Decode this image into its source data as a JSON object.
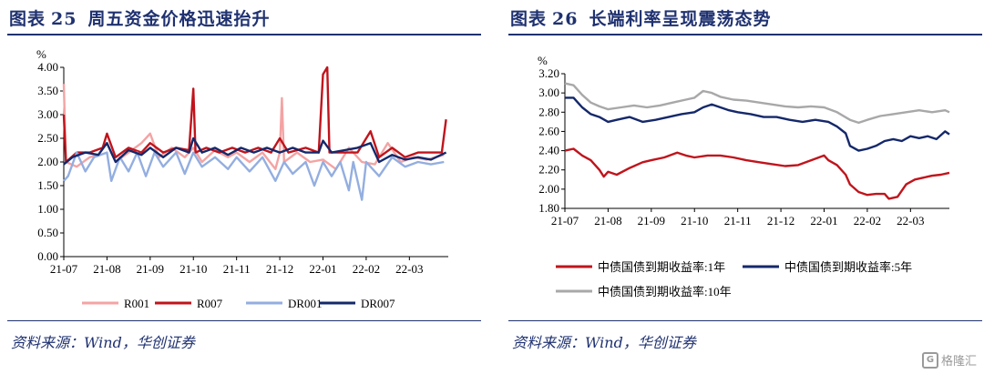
{
  "left": {
    "title_prefix": "图表",
    "title_num": "25",
    "title_text": "周五资金价格迅速抬升",
    "source": "资料来源：Wind，华创证券"
  },
  "right": {
    "title_prefix": "图表",
    "title_num": "26",
    "title_text": "长端利率呈现震荡态势",
    "source": "资料来源：Wind，华创证券"
  },
  "watermark": "格隆汇",
  "colors": {
    "R001": "#f4a3a3",
    "R007": "#c0141c",
    "DR001": "#93aee0",
    "DR007": "#14286a",
    "y1": "#c0141c",
    "y5": "#14286a",
    "y10": "#a8a8a8",
    "axis": "#000000"
  },
  "chart_data": [
    {
      "type": "line",
      "ylabel": "%",
      "ylim": [
        0,
        4.0
      ],
      "yticks": [
        "0.00",
        "0.50",
        "1.00",
        "1.50",
        "2.00",
        "2.50",
        "3.00",
        "3.50",
        "4.00"
      ],
      "xticks": [
        "21-07",
        "21-08",
        "21-09",
        "21-10",
        "21-11",
        "21-12",
        "22-01",
        "22-02",
        "22-03"
      ],
      "legend_position": "bottom",
      "series": [
        {
          "name": "R001",
          "color_key": "R001",
          "points": [
            [
              0,
              3.65
            ],
            [
              0.05,
              2.0
            ],
            [
              0.3,
              1.9
            ],
            [
              0.6,
              2.1
            ],
            [
              0.8,
              2.15
            ],
            [
              1.0,
              2.4
            ],
            [
              1.2,
              2.0
            ],
            [
              1.5,
              2.2
            ],
            [
              1.8,
              2.4
            ],
            [
              2.0,
              2.6
            ],
            [
              2.2,
              2.1
            ],
            [
              2.5,
              2.3
            ],
            [
              2.8,
              2.1
            ],
            [
              3.0,
              2.3
            ],
            [
              3.2,
              2.0
            ],
            [
              3.5,
              2.25
            ],
            [
              3.8,
              2.1
            ],
            [
              4.0,
              2.2
            ],
            [
              4.3,
              2.0
            ],
            [
              4.6,
              2.2
            ],
            [
              4.9,
              1.85
            ],
            [
              5.0,
              2.2
            ],
            [
              5.05,
              3.35
            ],
            [
              5.1,
              2.0
            ],
            [
              5.4,
              2.2
            ],
            [
              5.7,
              2.0
            ],
            [
              6.0,
              2.05
            ],
            [
              6.3,
              1.85
            ],
            [
              6.6,
              2.3
            ],
            [
              6.9,
              2.0
            ],
            [
              7.2,
              1.95
            ],
            [
              7.5,
              2.4
            ],
            [
              7.8,
              2.0
            ],
            [
              8.1,
              2.1
            ],
            [
              8.4,
              2.05
            ],
            [
              8.8,
              2.15
            ]
          ]
        },
        {
          "name": "R007",
          "color_key": "R007",
          "points": [
            [
              0,
              3.0
            ],
            [
              0.05,
              2.0
            ],
            [
              0.3,
              2.2
            ],
            [
              0.6,
              2.2
            ],
            [
              0.9,
              2.3
            ],
            [
              1.0,
              2.6
            ],
            [
              1.2,
              2.1
            ],
            [
              1.5,
              2.3
            ],
            [
              1.8,
              2.2
            ],
            [
              2.0,
              2.4
            ],
            [
              2.3,
              2.2
            ],
            [
              2.6,
              2.3
            ],
            [
              2.9,
              2.25
            ],
            [
              3.0,
              3.55
            ],
            [
              3.05,
              2.2
            ],
            [
              3.3,
              2.3
            ],
            [
              3.6,
              2.2
            ],
            [
              3.9,
              2.3
            ],
            [
              4.2,
              2.2
            ],
            [
              4.5,
              2.3
            ],
            [
              4.8,
              2.2
            ],
            [
              5.0,
              2.5
            ],
            [
              5.2,
              2.2
            ],
            [
              5.6,
              2.3
            ],
            [
              5.9,
              2.2
            ],
            [
              6.0,
              3.85
            ],
            [
              6.1,
              4.0
            ],
            [
              6.15,
              2.2
            ],
            [
              6.4,
              2.2
            ],
            [
              6.8,
              2.2
            ],
            [
              7.1,
              2.65
            ],
            [
              7.3,
              2.1
            ],
            [
              7.6,
              2.3
            ],
            [
              7.9,
              2.1
            ],
            [
              8.2,
              2.2
            ],
            [
              8.5,
              2.2
            ],
            [
              8.75,
              2.2
            ],
            [
              8.85,
              2.9
            ]
          ]
        },
        {
          "name": "DR001",
          "color_key": "DR001",
          "points": [
            [
              0,
              1.6
            ],
            [
              0.1,
              1.7
            ],
            [
              0.3,
              2.2
            ],
            [
              0.5,
              1.8
            ],
            [
              0.7,
              2.1
            ],
            [
              1.0,
              2.2
            ],
            [
              1.1,
              1.6
            ],
            [
              1.3,
              2.1
            ],
            [
              1.5,
              1.8
            ],
            [
              1.7,
              2.2
            ],
            [
              1.9,
              1.7
            ],
            [
              2.1,
              2.2
            ],
            [
              2.3,
              1.9
            ],
            [
              2.6,
              2.2
            ],
            [
              2.8,
              1.75
            ],
            [
              3.0,
              2.2
            ],
            [
              3.2,
              1.9
            ],
            [
              3.5,
              2.1
            ],
            [
              3.8,
              1.85
            ],
            [
              4.0,
              2.1
            ],
            [
              4.3,
              1.8
            ],
            [
              4.6,
              2.1
            ],
            [
              4.9,
              1.6
            ],
            [
              5.1,
              2.0
            ],
            [
              5.3,
              1.75
            ],
            [
              5.6,
              2.0
            ],
            [
              5.8,
              1.5
            ],
            [
              6.0,
              2.0
            ],
            [
              6.2,
              1.7
            ],
            [
              6.4,
              2.0
            ],
            [
              6.6,
              1.4
            ],
            [
              6.7,
              2.0
            ],
            [
              6.9,
              1.2
            ],
            [
              7.0,
              2.0
            ],
            [
              7.3,
              1.7
            ],
            [
              7.6,
              2.1
            ],
            [
              7.9,
              1.9
            ],
            [
              8.2,
              2.0
            ],
            [
              8.5,
              1.95
            ],
            [
              8.8,
              2.0
            ]
          ]
        },
        {
          "name": "DR007",
          "color_key": "DR007",
          "points": [
            [
              0,
              1.95
            ],
            [
              0.2,
              2.1
            ],
            [
              0.5,
              2.2
            ],
            [
              0.8,
              2.15
            ],
            [
              1.0,
              2.4
            ],
            [
              1.2,
              2.0
            ],
            [
              1.5,
              2.25
            ],
            [
              1.8,
              2.15
            ],
            [
              2.0,
              2.3
            ],
            [
              2.3,
              2.1
            ],
            [
              2.6,
              2.3
            ],
            [
              2.9,
              2.2
            ],
            [
              3.0,
              2.5
            ],
            [
              3.2,
              2.2
            ],
            [
              3.5,
              2.3
            ],
            [
              3.8,
              2.15
            ],
            [
              4.1,
              2.3
            ],
            [
              4.4,
              2.2
            ],
            [
              4.7,
              2.3
            ],
            [
              5.0,
              2.2
            ],
            [
              5.3,
              2.3
            ],
            [
              5.6,
              2.2
            ],
            [
              5.9,
              2.2
            ],
            [
              6.0,
              2.45
            ],
            [
              6.2,
              2.2
            ],
            [
              6.5,
              2.25
            ],
            [
              6.8,
              2.3
            ],
            [
              7.1,
              2.4
            ],
            [
              7.3,
              2.0
            ],
            [
              7.6,
              2.15
            ],
            [
              7.9,
              2.05
            ],
            [
              8.2,
              2.1
            ],
            [
              8.5,
              2.05
            ],
            [
              8.85,
              2.2
            ]
          ]
        }
      ]
    },
    {
      "type": "line",
      "ylabel": "%",
      "ylim": [
        1.8,
        3.2
      ],
      "yticks": [
        "1.80",
        "2.00",
        "2.20",
        "2.40",
        "2.60",
        "2.80",
        "3.00",
        "3.20"
      ],
      "xticks": [
        "21-07",
        "21-08",
        "21-09",
        "21-10",
        "21-11",
        "21-12",
        "22-01",
        "22-02",
        "22-03"
      ],
      "legend_position": "bottom",
      "series": [
        {
          "name": "中债国债到期收益率:1年",
          "color_key": "y1",
          "points": [
            [
              0,
              2.4
            ],
            [
              0.2,
              2.42
            ],
            [
              0.4,
              2.35
            ],
            [
              0.6,
              2.3
            ],
            [
              0.8,
              2.2
            ],
            [
              0.9,
              2.13
            ],
            [
              1.0,
              2.18
            ],
            [
              1.2,
              2.15
            ],
            [
              1.5,
              2.22
            ],
            [
              1.8,
              2.28
            ],
            [
              2.0,
              2.3
            ],
            [
              2.3,
              2.33
            ],
            [
              2.6,
              2.38
            ],
            [
              2.8,
              2.35
            ],
            [
              3.0,
              2.33
            ],
            [
              3.3,
              2.35
            ],
            [
              3.6,
              2.35
            ],
            [
              3.9,
              2.33
            ],
            [
              4.2,
              2.3
            ],
            [
              4.5,
              2.28
            ],
            [
              4.8,
              2.26
            ],
            [
              5.1,
              2.24
            ],
            [
              5.4,
              2.25
            ],
            [
              5.7,
              2.3
            ],
            [
              6.0,
              2.35
            ],
            [
              6.1,
              2.3
            ],
            [
              6.3,
              2.25
            ],
            [
              6.5,
              2.15
            ],
            [
              6.6,
              2.05
            ],
            [
              6.8,
              1.97
            ],
            [
              7.0,
              1.94
            ],
            [
              7.2,
              1.95
            ],
            [
              7.4,
              1.95
            ],
            [
              7.5,
              1.9
            ],
            [
              7.7,
              1.92
            ],
            [
              7.9,
              2.05
            ],
            [
              8.1,
              2.1
            ],
            [
              8.3,
              2.12
            ],
            [
              8.5,
              2.14
            ],
            [
              8.7,
              2.15
            ],
            [
              8.9,
              2.17
            ]
          ]
        },
        {
          "name": "中债国债到期收益率:5年",
          "color_key": "y5",
          "points": [
            [
              0,
              2.95
            ],
            [
              0.2,
              2.95
            ],
            [
              0.4,
              2.85
            ],
            [
              0.6,
              2.78
            ],
            [
              0.8,
              2.75
            ],
            [
              1.0,
              2.7
            ],
            [
              1.2,
              2.72
            ],
            [
              1.5,
              2.75
            ],
            [
              1.8,
              2.7
            ],
            [
              2.1,
              2.72
            ],
            [
              2.4,
              2.75
            ],
            [
              2.7,
              2.78
            ],
            [
              3.0,
              2.8
            ],
            [
              3.2,
              2.85
            ],
            [
              3.4,
              2.88
            ],
            [
              3.6,
              2.85
            ],
            [
              3.8,
              2.82
            ],
            [
              4.0,
              2.8
            ],
            [
              4.3,
              2.78
            ],
            [
              4.6,
              2.75
            ],
            [
              4.9,
              2.75
            ],
            [
              5.2,
              2.72
            ],
            [
              5.5,
              2.7
            ],
            [
              5.8,
              2.72
            ],
            [
              6.1,
              2.7
            ],
            [
              6.3,
              2.65
            ],
            [
              6.5,
              2.58
            ],
            [
              6.6,
              2.45
            ],
            [
              6.8,
              2.4
            ],
            [
              7.0,
              2.42
            ],
            [
              7.2,
              2.45
            ],
            [
              7.4,
              2.5
            ],
            [
              7.6,
              2.52
            ],
            [
              7.8,
              2.5
            ],
            [
              8.0,
              2.55
            ],
            [
              8.2,
              2.53
            ],
            [
              8.4,
              2.55
            ],
            [
              8.6,
              2.52
            ],
            [
              8.8,
              2.6
            ],
            [
              8.9,
              2.57
            ]
          ]
        },
        {
          "name": "中债国债到期收益率:10年",
          "color_key": "y10",
          "points": [
            [
              0,
              3.1
            ],
            [
              0.2,
              3.08
            ],
            [
              0.4,
              2.98
            ],
            [
              0.6,
              2.9
            ],
            [
              0.8,
              2.86
            ],
            [
              1.0,
              2.83
            ],
            [
              1.3,
              2.85
            ],
            [
              1.6,
              2.87
            ],
            [
              1.9,
              2.85
            ],
            [
              2.2,
              2.87
            ],
            [
              2.5,
              2.9
            ],
            [
              2.8,
              2.93
            ],
            [
              3.0,
              2.95
            ],
            [
              3.2,
              3.02
            ],
            [
              3.4,
              3.0
            ],
            [
              3.6,
              2.96
            ],
            [
              3.9,
              2.93
            ],
            [
              4.2,
              2.92
            ],
            [
              4.5,
              2.9
            ],
            [
              4.8,
              2.88
            ],
            [
              5.1,
              2.86
            ],
            [
              5.4,
              2.85
            ],
            [
              5.7,
              2.86
            ],
            [
              6.0,
              2.85
            ],
            [
              6.3,
              2.8
            ],
            [
              6.6,
              2.72
            ],
            [
              6.8,
              2.69
            ],
            [
              7.0,
              2.72
            ],
            [
              7.3,
              2.76
            ],
            [
              7.6,
              2.78
            ],
            [
              7.9,
              2.8
            ],
            [
              8.2,
              2.82
            ],
            [
              8.5,
              2.8
            ],
            [
              8.8,
              2.82
            ],
            [
              8.9,
              2.8
            ]
          ]
        }
      ]
    }
  ]
}
